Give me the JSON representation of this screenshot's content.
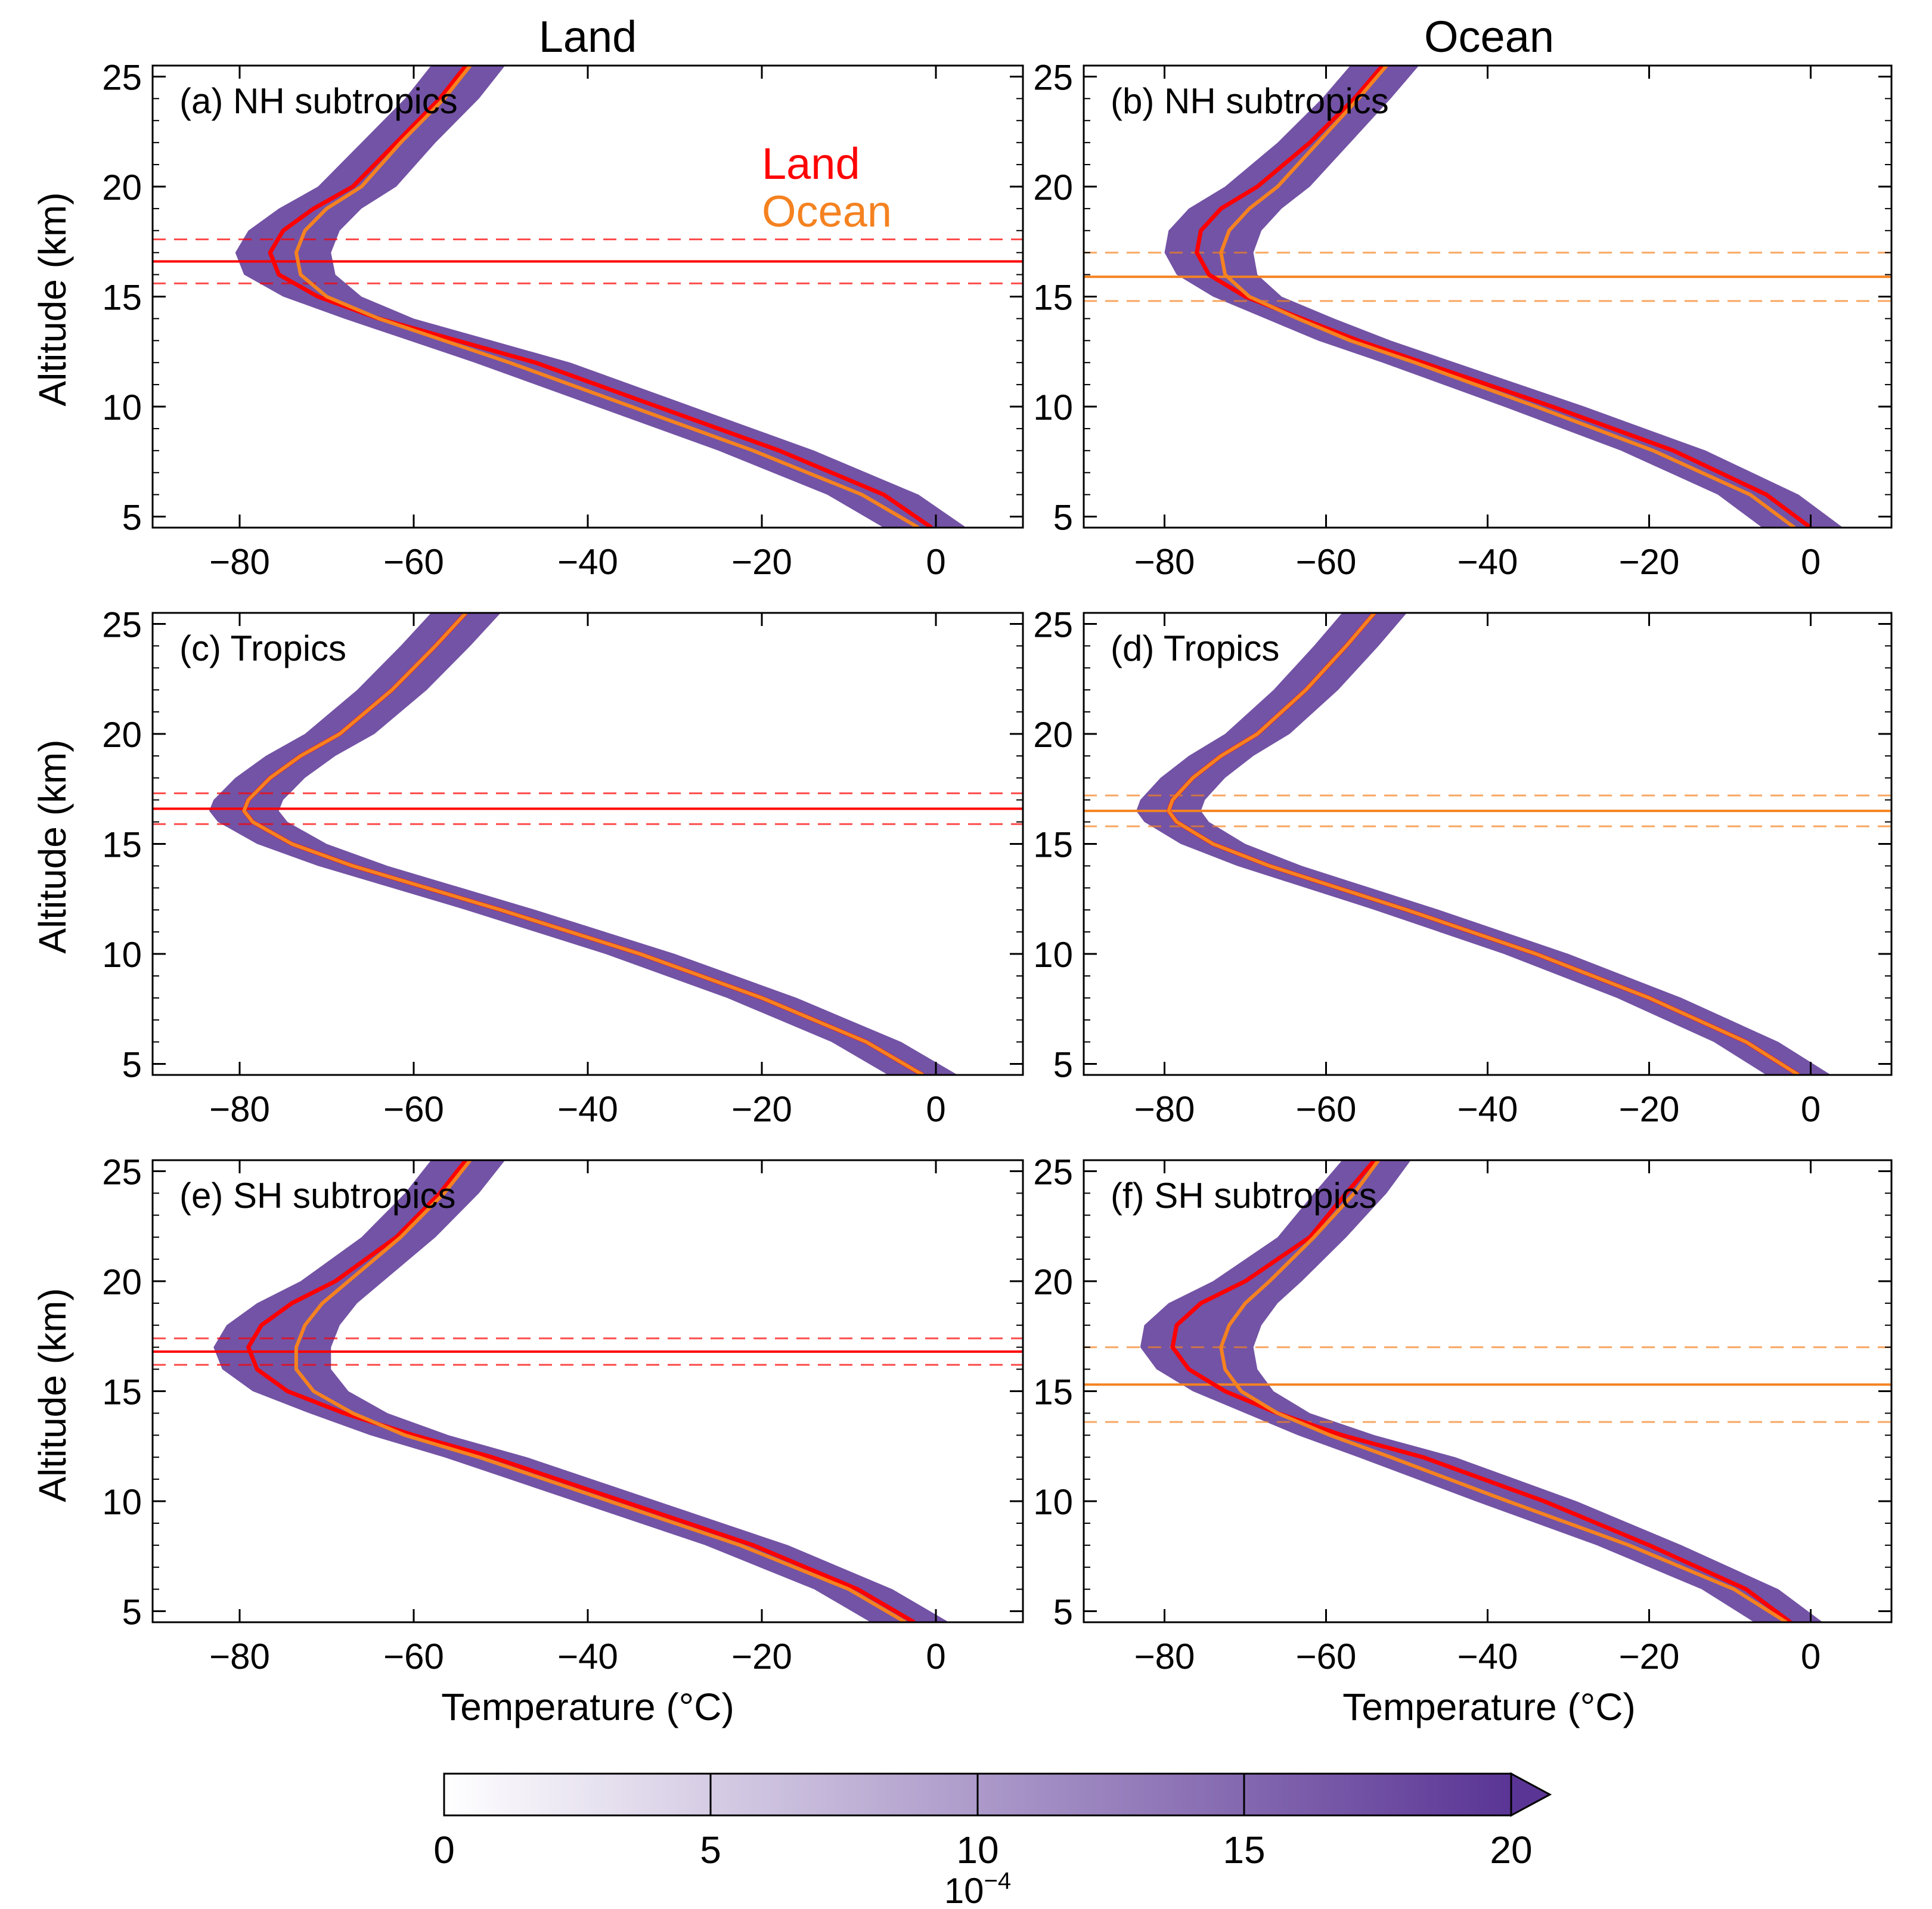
{
  "figure": {
    "column_titles": [
      "Land",
      "Ocean"
    ],
    "xlabel": "Temperature (°C)",
    "ylabel": "Altitude (km)",
    "legend": [
      {
        "label": "Land",
        "color": "#ff0000"
      },
      {
        "label": "Ocean",
        "color": "#f58220"
      }
    ],
    "colorbar": {
      "ticks": [
        "0",
        "5",
        "10",
        "15",
        "20"
      ],
      "exponent_label": "10",
      "exponent_sup": "−4",
      "min": 0,
      "max": 20,
      "levels": 20,
      "color_low": "#ffffff",
      "color_high": "#5a3595",
      "extend": "max"
    }
  },
  "colors": {
    "land": "#ff0000",
    "ocean": "#f58220",
    "dist": "#5a3595"
  },
  "chart_data": [
    {
      "id": "a",
      "label": "(a) NH subtropics",
      "type": "line",
      "xlim": [
        -90,
        10
      ],
      "ylim": [
        4.5,
        25.5
      ],
      "xticks": [
        -80,
        -60,
        -40,
        -20,
        0
      ],
      "yticks": [
        5,
        10,
        15,
        20,
        25
      ],
      "altitude_km": [
        4.5,
        6,
        8,
        10,
        12,
        13,
        14,
        15,
        16,
        17,
        18,
        19,
        20,
        22,
        24,
        25.5
      ],
      "series": [
        {
          "name": "Land",
          "temperature_c": [
            -0.5,
            -6,
            -18,
            -32,
            -46,
            -55,
            -64,
            -71,
            -75.5,
            -76.5,
            -75,
            -71.5,
            -67,
            -62,
            -57,
            -54
          ]
        },
        {
          "name": "Ocean",
          "temperature_c": [
            -2,
            -8.5,
            -21,
            -35,
            -49,
            -56.5,
            -64,
            -70,
            -73,
            -73.5,
            -72.5,
            -70,
            -66,
            -61.5,
            -56.5,
            -53.5
          ]
        }
      ],
      "tropopause": {
        "source": "Land",
        "mean_km": 16.6,
        "lower_km": 15.6,
        "upper_km": 17.6
      },
      "distribution_band_width_c": 6
    },
    {
      "id": "b",
      "label": "(b) NH subtropics",
      "type": "line",
      "xlim": [
        -90,
        10
      ],
      "ylim": [
        4.5,
        25.5
      ],
      "xticks": [
        -80,
        -60,
        -40,
        -20,
        0
      ],
      "yticks": [
        5,
        10,
        15,
        20,
        25
      ],
      "altitude_km": [
        4.5,
        6,
        8,
        10,
        12,
        13,
        14,
        15,
        16,
        17,
        18,
        19,
        20,
        22,
        24,
        25.5
      ],
      "series": [
        {
          "name": "Land",
          "temperature_c": [
            0,
            -5.5,
            -17,
            -32,
            -48,
            -56,
            -63,
            -70,
            -74.5,
            -76,
            -75.5,
            -73,
            -68.5,
            -62,
            -56.5,
            -53
          ]
        },
        {
          "name": "Ocean",
          "temperature_c": [
            -2,
            -7.5,
            -19.5,
            -34,
            -49,
            -57,
            -63.5,
            -69.5,
            -72.5,
            -73,
            -72,
            -69.5,
            -66,
            -61,
            -56,
            -52.5
          ]
        }
      ],
      "tropopause": {
        "source": "Ocean",
        "mean_km": 15.9,
        "lower_km": 14.8,
        "upper_km": 17
      }
    },
    {
      "id": "c",
      "label": "(c) Tropics",
      "type": "line",
      "xlim": [
        -90,
        10
      ],
      "ylim": [
        4.5,
        25.5
      ],
      "xticks": [
        -80,
        -60,
        -40,
        -20,
        0
      ],
      "yticks": [
        5,
        10,
        15,
        20,
        25
      ],
      "altitude_km": [
        4.5,
        6,
        8,
        10,
        12,
        13,
        14,
        15,
        16,
        16.5,
        17,
        18,
        19,
        20,
        22,
        24,
        25.5
      ],
      "series": [
        {
          "name": "Land",
          "temperature_c": [
            -1.5,
            -8,
            -20,
            -34,
            -50,
            -58.5,
            -67,
            -74,
            -78.5,
            -79.5,
            -79,
            -76.5,
            -73,
            -68.5,
            -62.5,
            -57.5,
            -54
          ]
        },
        {
          "name": "Ocean",
          "temperature_c": [
            -1.5,
            -8,
            -20,
            -34,
            -50,
            -58.5,
            -67,
            -74,
            -78.5,
            -79.5,
            -79,
            -76.5,
            -73,
            -68.5,
            -62.5,
            -57.5,
            -54
          ]
        }
      ],
      "tropopause": {
        "source": "Land",
        "mean_km": 16.6,
        "lower_km": 15.9,
        "upper_km": 17.3
      }
    },
    {
      "id": "d",
      "label": "(d) Tropics",
      "type": "line",
      "xlim": [
        -90,
        10
      ],
      "ylim": [
        4.5,
        25.5
      ],
      "xticks": [
        -80,
        -60,
        -40,
        -20,
        0
      ],
      "yticks": [
        5,
        10,
        15,
        20,
        25
      ],
      "altitude_km": [
        4.5,
        6,
        8,
        10,
        12,
        13,
        14,
        15,
        16,
        16.5,
        17,
        18,
        19,
        20,
        22,
        24,
        25.5
      ],
      "series": [
        {
          "name": "Land",
          "temperature_c": [
            -1.5,
            -8,
            -20,
            -34,
            -50,
            -58.5,
            -67,
            -74,
            -78.5,
            -79.5,
            -79,
            -76.5,
            -73,
            -68.5,
            -62.5,
            -57.5,
            -54
          ]
        },
        {
          "name": "Ocean",
          "temperature_c": [
            -1.5,
            -8,
            -20,
            -34,
            -50,
            -58.5,
            -67,
            -74,
            -78.5,
            -79.5,
            -79,
            -76.5,
            -73,
            -68.5,
            -62.5,
            -57.5,
            -54
          ]
        }
      ],
      "tropopause": {
        "source": "Ocean",
        "mean_km": 16.5,
        "lower_km": 15.8,
        "upper_km": 17.2
      }
    },
    {
      "id": "e",
      "label": "(e) SH subtropics",
      "type": "line",
      "xlim": [
        -90,
        10
      ],
      "ylim": [
        4.5,
        25.5
      ],
      "xticks": [
        -80,
        -60,
        -40,
        -20,
        0
      ],
      "yticks": [
        5,
        10,
        15,
        20,
        25
      ],
      "altitude_km": [
        4.5,
        6,
        8,
        10,
        12,
        13,
        14,
        15,
        16,
        17,
        18,
        19,
        20,
        22,
        24,
        25.5
      ],
      "series": [
        {
          "name": "Land",
          "temperature_c": [
            -2.5,
            -9,
            -21,
            -36,
            -51,
            -60,
            -68,
            -74.5,
            -78,
            -79,
            -77.5,
            -74,
            -69,
            -62,
            -57,
            -54
          ]
        },
        {
          "name": "Ocean",
          "temperature_c": [
            -3.5,
            -10,
            -22.5,
            -37.5,
            -52.5,
            -61,
            -67,
            -71.5,
            -73.5,
            -73.5,
            -72.5,
            -70.5,
            -67.5,
            -61.5,
            -56.5,
            -53.5
          ]
        }
      ],
      "tropopause": {
        "source": "Land",
        "mean_km": 16.8,
        "lower_km": 16.2,
        "upper_km": 17.4
      }
    },
    {
      "id": "f",
      "label": "(f) SH subtropics",
      "type": "line",
      "xlim": [
        -90,
        10
      ],
      "ylim": [
        4.5,
        25.5
      ],
      "xticks": [
        -80,
        -60,
        -40,
        -20,
        0
      ],
      "yticks": [
        5,
        10,
        15,
        20,
        25
      ],
      "altitude_km": [
        4.5,
        6,
        8,
        10,
        12,
        13,
        14,
        15,
        16,
        17,
        18,
        19,
        20,
        22,
        24,
        25.5
      ],
      "series": [
        {
          "name": "Land",
          "temperature_c": [
            -2.5,
            -8,
            -20,
            -33,
            -48,
            -58,
            -66,
            -72.5,
            -77,
            -79,
            -78.5,
            -75.5,
            -70,
            -62,
            -57.5,
            -54
          ]
        },
        {
          "name": "Ocean",
          "temperature_c": [
            -3,
            -9.5,
            -22.5,
            -37.5,
            -52,
            -59.5,
            -66,
            -70.5,
            -72.5,
            -73,
            -72,
            -70,
            -67,
            -61.5,
            -56.5,
            -53.5
          ]
        }
      ],
      "tropopause": {
        "source": "Ocean",
        "mean_km": 15.3,
        "lower_km": 13.6,
        "upper_km": 17
      }
    }
  ]
}
